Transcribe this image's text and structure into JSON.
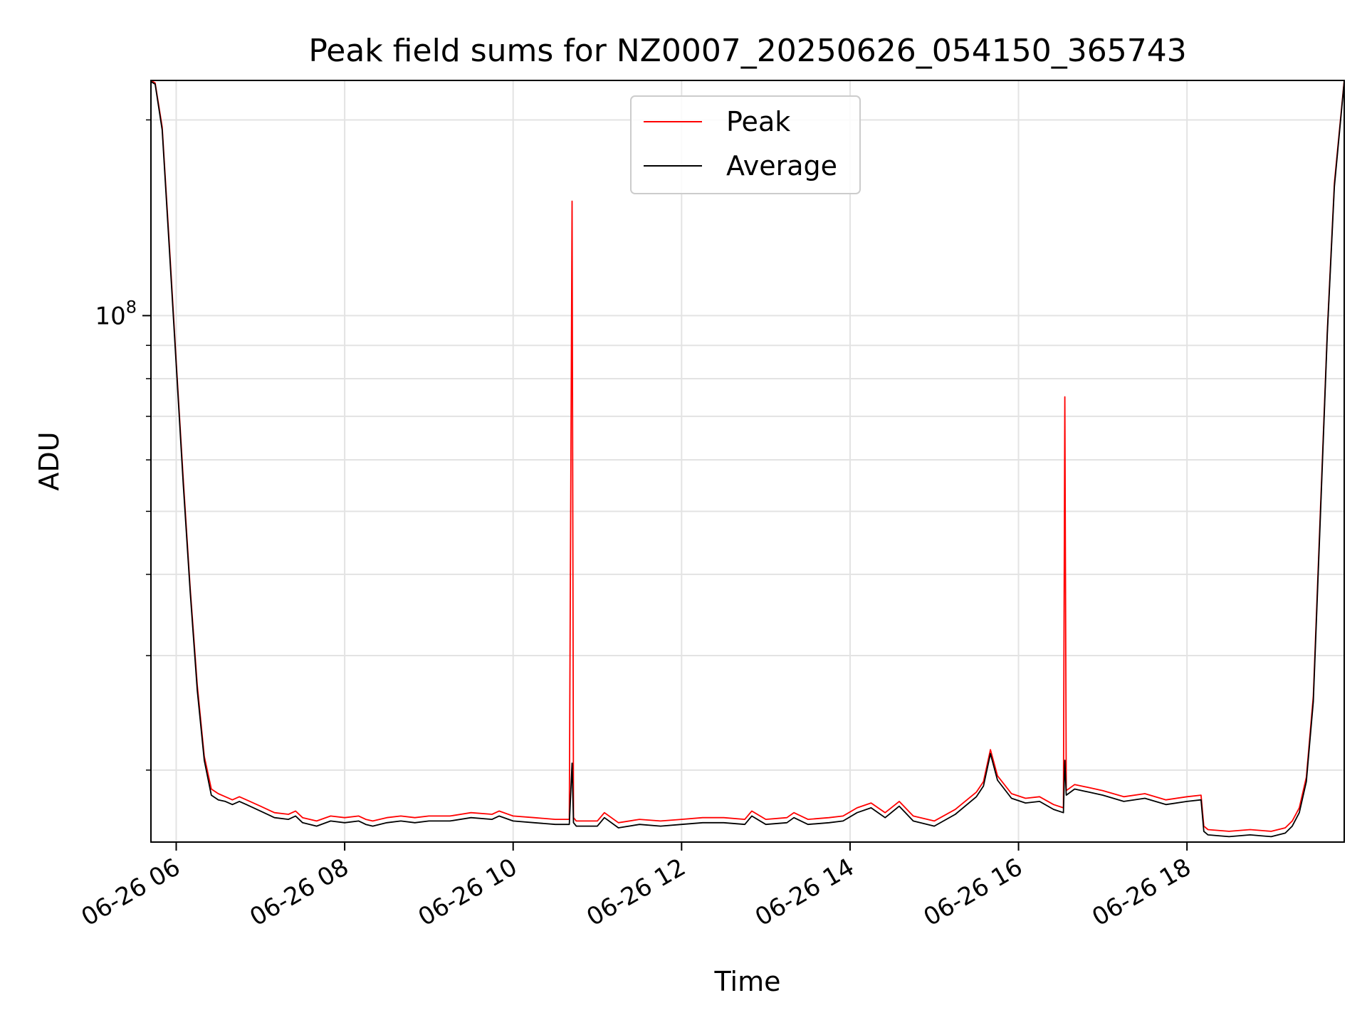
{
  "chart_data": {
    "type": "line",
    "title": "Peak field sums for NZ0007_20250626_054150_365743",
    "xlabel": "Time",
    "ylabel": "ADU",
    "x_scale": "time",
    "y_scale": "log",
    "x_range": [
      "2025-06-26T05:42:00",
      "2025-06-26T19:52:00"
    ],
    "ylim": [
      15500000,
      230000000
    ],
    "grid": true,
    "legend_position": "top-center",
    "x_ticks": [
      {
        "value": "2025-06-26T06:00:00",
        "label": "06-26 06"
      },
      {
        "value": "2025-06-26T08:00:00",
        "label": "06-26 08"
      },
      {
        "value": "2025-06-26T10:00:00",
        "label": "06-26 10"
      },
      {
        "value": "2025-06-26T12:00:00",
        "label": "06-26 12"
      },
      {
        "value": "2025-06-26T14:00:00",
        "label": "06-26 14"
      },
      {
        "value": "2025-06-26T16:00:00",
        "label": "06-26 16"
      },
      {
        "value": "2025-06-26T18:00:00",
        "label": "06-26 18"
      }
    ],
    "y_ticks_major": [
      {
        "value": 100000000,
        "label_base": "10",
        "label_exp": "8"
      }
    ],
    "y_ticks_minor": [
      20000000,
      30000000,
      40000000,
      50000000,
      60000000,
      70000000,
      80000000,
      90000000,
      200000000
    ],
    "x": [
      "05:42",
      "05:45",
      "05:50",
      "05:55",
      "06:00",
      "06:05",
      "06:10",
      "06:15",
      "06:20",
      "06:25",
      "06:30",
      "06:35",
      "06:40",
      "06:45",
      "06:50",
      "07:00",
      "07:10",
      "07:20",
      "07:25",
      "07:30",
      "07:40",
      "07:50",
      "08:00",
      "08:10",
      "08:15",
      "08:20",
      "08:30",
      "08:40",
      "08:50",
      "09:00",
      "09:15",
      "09:30",
      "09:45",
      "09:50",
      "10:00",
      "10:15",
      "10:30",
      "10:40",
      "10:42",
      "10:43",
      "10:44",
      "10:45",
      "11:00",
      "11:05",
      "11:15",
      "11:30",
      "11:45",
      "12:00",
      "12:15",
      "12:30",
      "12:45",
      "12:50",
      "13:00",
      "13:15",
      "13:20",
      "13:30",
      "13:45",
      "13:55",
      "14:05",
      "14:15",
      "14:25",
      "14:35",
      "14:45",
      "15:00",
      "15:15",
      "15:30",
      "15:35",
      "15:40",
      "15:45",
      "15:55",
      "16:05",
      "16:15",
      "16:25",
      "16:32",
      "16:33",
      "16:34",
      "16:40",
      "16:50",
      "17:00",
      "17:15",
      "17:30",
      "17:45",
      "18:00",
      "18:10",
      "18:12",
      "18:15",
      "18:30",
      "18:45",
      "19:00",
      "19:10",
      "19:15",
      "19:20",
      "19:25",
      "19:30",
      "19:35",
      "19:40",
      "19:45",
      "19:52"
    ],
    "series": [
      {
        "name": "Peak",
        "color": "#ff0000",
        "values": [
          230000000,
          228000000,
          195000000,
          130000000,
          85000000,
          56000000,
          38000000,
          27000000,
          21000000,
          18700000,
          18400000,
          18200000,
          18000000,
          18200000,
          18000000,
          17600000,
          17200000,
          17100000,
          17300000,
          16900000,
          16700000,
          17000000,
          16900000,
          17000000,
          16800000,
          16700000,
          16900000,
          17000000,
          16900000,
          17000000,
          17000000,
          17200000,
          17100000,
          17300000,
          17000000,
          16900000,
          16800000,
          16800000,
          150000000,
          16900000,
          16800000,
          16700000,
          16700000,
          17200000,
          16600000,
          16800000,
          16700000,
          16800000,
          16900000,
          16900000,
          16800000,
          17300000,
          16800000,
          16900000,
          17200000,
          16800000,
          16900000,
          17000000,
          17500000,
          17800000,
          17200000,
          17900000,
          17000000,
          16700000,
          17400000,
          18500000,
          19200000,
          21500000,
          19600000,
          18400000,
          18100000,
          18200000,
          17700000,
          17500000,
          75000000,
          18600000,
          19000000,
          18800000,
          18600000,
          18200000,
          18400000,
          18000000,
          18200000,
          18300000,
          16400000,
          16200000,
          16100000,
          16200000,
          16100000,
          16300000,
          16700000,
          17500000,
          19500000,
          26000000,
          50000000,
          95000000,
          160000000,
          230000000
        ]
      },
      {
        "name": "Average",
        "color": "#000000",
        "values": [
          229000000,
          227000000,
          193000000,
          128000000,
          84000000,
          55000000,
          37500000,
          26500000,
          20700000,
          18300000,
          18000000,
          17900000,
          17700000,
          17900000,
          17700000,
          17300000,
          16900000,
          16800000,
          17000000,
          16600000,
          16400000,
          16700000,
          16600000,
          16700000,
          16500000,
          16400000,
          16600000,
          16700000,
          16600000,
          16700000,
          16700000,
          16900000,
          16800000,
          17000000,
          16700000,
          16600000,
          16500000,
          16500000,
          20500000,
          16600000,
          16500000,
          16400000,
          16400000,
          16900000,
          16300000,
          16500000,
          16400000,
          16500000,
          16600000,
          16600000,
          16500000,
          17000000,
          16500000,
          16600000,
          16900000,
          16500000,
          16600000,
          16700000,
          17200000,
          17500000,
          16900000,
          17600000,
          16700000,
          16400000,
          17100000,
          18200000,
          18900000,
          21200000,
          19300000,
          18100000,
          17800000,
          17900000,
          17400000,
          17200000,
          20700000,
          18300000,
          18700000,
          18500000,
          18300000,
          17900000,
          18100000,
          17700000,
          17900000,
          18000000,
          16100000,
          15900000,
          15800000,
          15900000,
          15800000,
          16000000,
          16400000,
          17200000,
          19200000,
          25500000,
          49000000,
          94000000,
          158000000,
          229000000
        ]
      }
    ]
  }
}
